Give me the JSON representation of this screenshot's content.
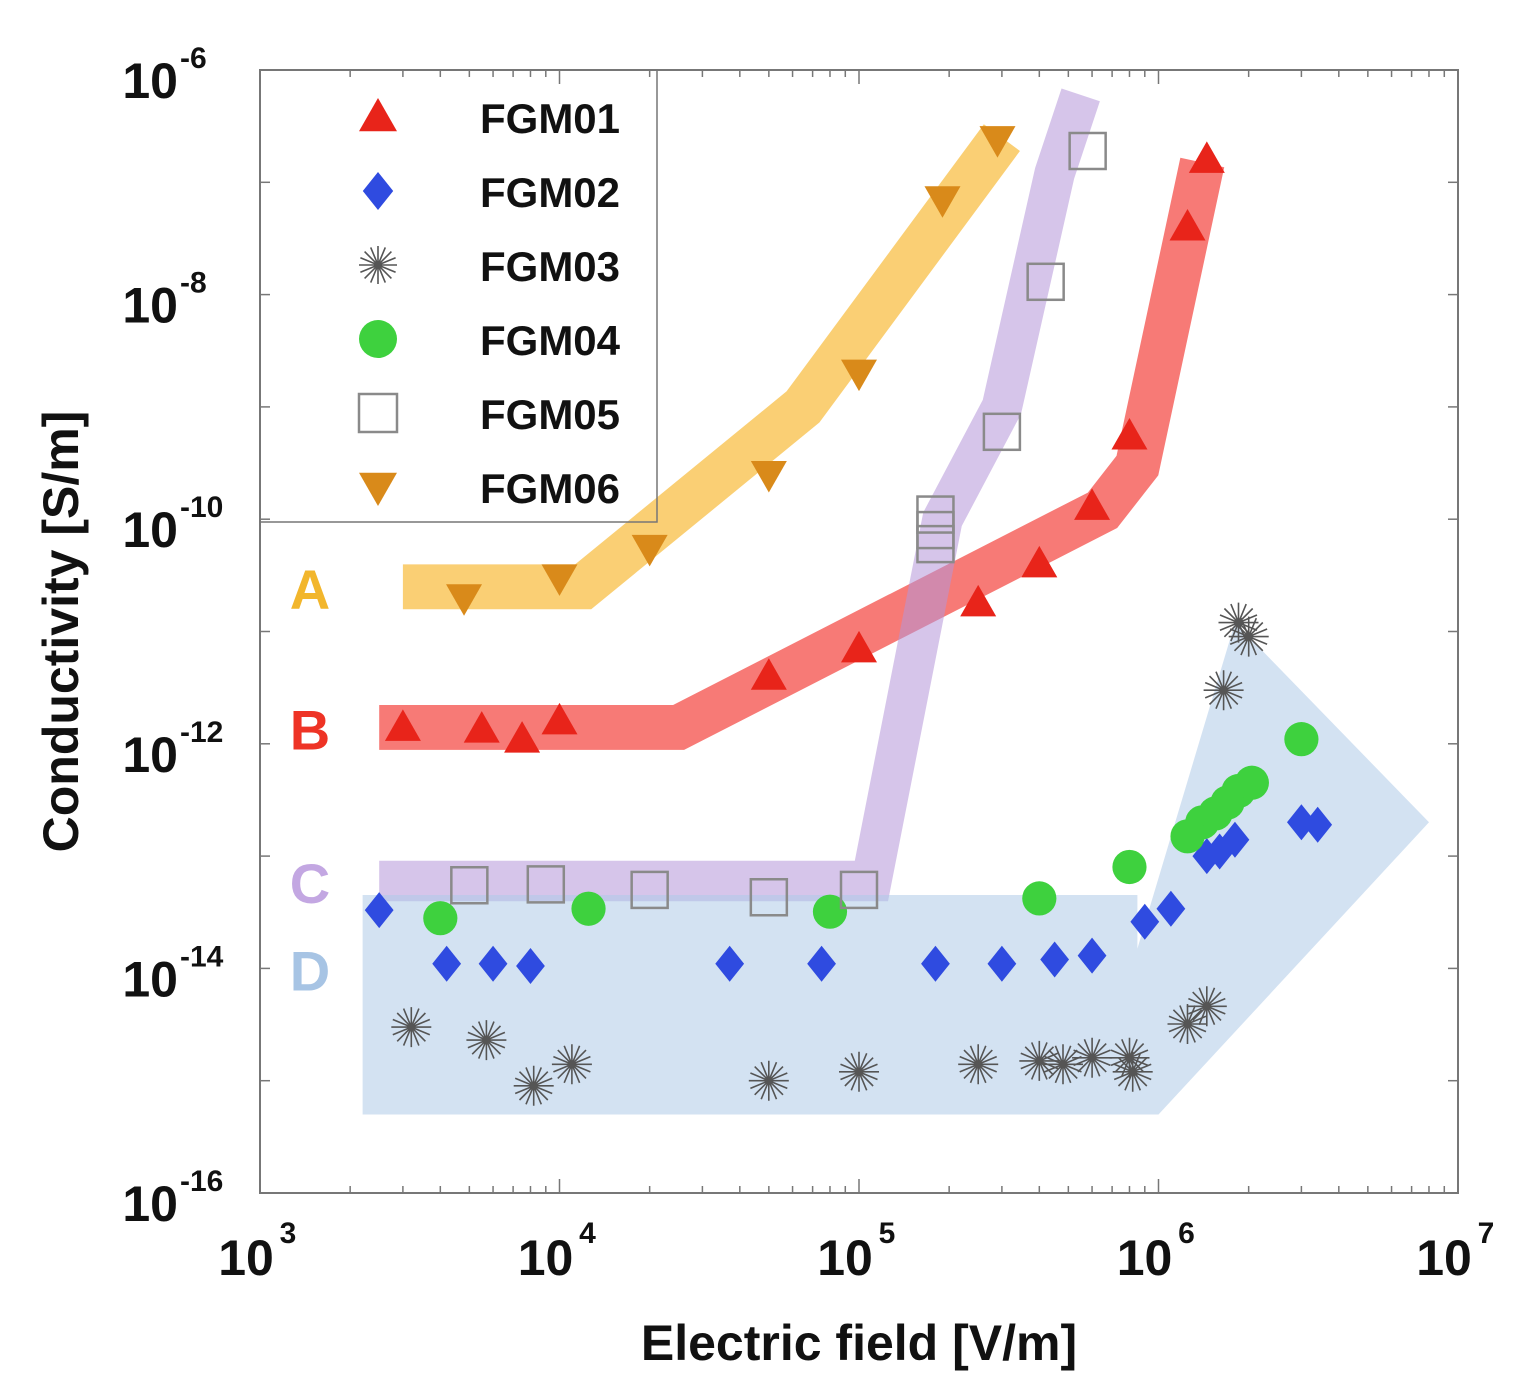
{
  "chart_data": {
    "type": "scatter",
    "title": "",
    "xlabel": "Electric field [V/m]",
    "ylabel": "Conductivity [S/m]",
    "x_scale": "log",
    "y_scale": "log",
    "xlim": [
      1000,
      10000000
    ],
    "ylim": [
      1e-16,
      1e-06
    ],
    "x_ticks": [
      {
        "base": "10",
        "exp": "3"
      },
      {
        "base": "10",
        "exp": "4"
      },
      {
        "base": "10",
        "exp": "5"
      },
      {
        "base": "10",
        "exp": "6"
      },
      {
        "base": "10",
        "exp": "7"
      }
    ],
    "y_ticks": [
      {
        "base": "10",
        "exp": "-16"
      },
      {
        "base": "10",
        "exp": "-14"
      },
      {
        "base": "10",
        "exp": "-12"
      },
      {
        "base": "10",
        "exp": "-10"
      },
      {
        "base": "10",
        "exp": "-8"
      },
      {
        "base": "10",
        "exp": "-6"
      }
    ],
    "series": [
      {
        "name": "FGM01",
        "marker": "triangle-up",
        "color": "#e8241a",
        "points": [
          [
            3000,
            1.4e-12
          ],
          [
            5500,
            1.35e-12
          ],
          [
            7500,
            1.1e-12
          ],
          [
            10000,
            1.6e-12
          ],
          [
            50000,
            4e-12
          ],
          [
            100000,
            7e-12
          ],
          [
            250000,
            1.8e-11
          ],
          [
            400000,
            4e-11
          ],
          [
            600000,
            1.3e-10
          ],
          [
            800000,
            5.5e-10
          ],
          [
            1250000,
            4e-08
          ],
          [
            1450000,
            1.6e-07
          ]
        ]
      },
      {
        "name": "FGM02",
        "marker": "diamond",
        "color": "#2f4be0",
        "points": [
          [
            2500,
            3.3e-14
          ],
          [
            4200,
            1.1e-14
          ],
          [
            6000,
            1.1e-14
          ],
          [
            8000,
            1.05e-14
          ],
          [
            37000,
            1.1e-14
          ],
          [
            75000,
            1.1e-14
          ],
          [
            180000,
            1.1e-14
          ],
          [
            300000,
            1.1e-14
          ],
          [
            450000,
            1.2e-14
          ],
          [
            600000,
            1.3e-14
          ],
          [
            900000,
            2.6e-14
          ],
          [
            1100000,
            3.4e-14
          ],
          [
            1450000,
            1e-13
          ],
          [
            1600000,
            1.1e-13
          ],
          [
            1800000,
            1.4e-13
          ],
          [
            3000000,
            2e-13
          ],
          [
            3400000,
            1.9e-13
          ]
        ]
      },
      {
        "name": "FGM03",
        "marker": "asterisk",
        "color": "#555555",
        "points": [
          [
            3200,
            3e-15
          ],
          [
            5700,
            2.3e-15
          ],
          [
            8200,
            9e-16
          ],
          [
            11000,
            1.4e-15
          ],
          [
            50000,
            1e-15
          ],
          [
            100000,
            1.2e-15
          ],
          [
            250000,
            1.4e-15
          ],
          [
            400000,
            1.5e-15
          ],
          [
            480000,
            1.4e-15
          ],
          [
            600000,
            1.6e-15
          ],
          [
            800000,
            1.6e-15
          ],
          [
            820000,
            1.2e-15
          ],
          [
            1250000,
            3.2e-15
          ],
          [
            1450000,
            4.6e-15
          ],
          [
            1650000,
            3e-12
          ],
          [
            1850000,
            1.2e-11
          ],
          [
            2000000,
            9e-12
          ]
        ]
      },
      {
        "name": "FGM04",
        "marker": "circle",
        "color": "#3ed13e",
        "points": [
          [
            4000,
            2.8e-14
          ],
          [
            12500,
            3.4e-14
          ],
          [
            80000,
            3.2e-14
          ],
          [
            400000,
            4.2e-14
          ],
          [
            800000,
            8e-14
          ],
          [
            1250000,
            1.5e-13
          ],
          [
            1400000,
            2e-13
          ],
          [
            1550000,
            2.4e-13
          ],
          [
            1700000,
            3e-13
          ],
          [
            1850000,
            3.8e-13
          ],
          [
            2050000,
            4.5e-13
          ],
          [
            3000000,
            1.1e-12
          ]
        ]
      },
      {
        "name": "FGM05",
        "marker": "square-open",
        "color": "#8a8a8a",
        "points": [
          [
            5000,
            5.5e-14
          ],
          [
            9000,
            5.6e-14
          ],
          [
            20000,
            5e-14
          ],
          [
            50000,
            4.3e-14
          ],
          [
            100000,
            5e-14
          ],
          [
            180000,
            6e-11
          ],
          [
            180000,
            8e-11
          ],
          [
            180000,
            1.1e-10
          ],
          [
            300000,
            6e-10
          ],
          [
            420000,
            1.3e-08
          ],
          [
            580000,
            1.9e-07
          ]
        ]
      },
      {
        "name": "FGM06",
        "marker": "triangle-down",
        "color": "#d98a1a",
        "points": [
          [
            4800,
            2e-11
          ],
          [
            10000,
            3e-11
          ],
          [
            20000,
            5.5e-11
          ],
          [
            50000,
            2.5e-10
          ],
          [
            100000,
            2e-09
          ],
          [
            190000,
            7e-08
          ],
          [
            290000,
            2.4e-07
          ]
        ]
      }
    ],
    "regions": [
      {
        "label": "A",
        "color": "#f7b52a",
        "label_color": "#f2b62c",
        "opacity": 0.65,
        "path": [
          [
            3000,
            2.5e-11
          ],
          [
            12000,
            2.5e-11
          ],
          [
            65000,
            1e-09
          ],
          [
            300000,
            2.5e-07
          ]
        ],
        "half_width_decades": 0.2
      },
      {
        "label": "B",
        "color": "#f2332c",
        "label_color": "#ee3325",
        "opacity": 0.65,
        "path": [
          [
            2500,
            1.4e-12
          ],
          [
            25000,
            1.4e-12
          ],
          [
            650000,
            1.2e-10
          ],
          [
            850000,
            3e-10
          ],
          [
            1400000,
            1.5e-07
          ]
        ],
        "half_width_decades": 0.2
      },
      {
        "label": "C",
        "color": "#b596d8",
        "label_color": "#c3a7e2",
        "opacity": 0.55,
        "path": [
          [
            2500,
            6e-14
          ],
          [
            110000,
            6e-14
          ],
          [
            190000,
            1e-10
          ],
          [
            300000,
            1e-09
          ],
          [
            450000,
            1.2e-07
          ],
          [
            550000,
            6e-07
          ]
        ],
        "half_width_decades": 0.18
      },
      {
        "label": "D",
        "color": "#aecbe8",
        "label_color": "#a7c4e4",
        "opacity": 0.55,
        "shape": "polygon",
        "polygon": [
          [
            2200,
            4.5e-14
          ],
          [
            850000,
            4.5e-14
          ],
          [
            850000,
            1.5e-14
          ],
          [
            1800000,
            1.2e-11
          ],
          [
            8000000,
            2e-13
          ],
          [
            1000000,
            5e-16
          ],
          [
            2200,
            5e-16
          ]
        ]
      }
    ],
    "legend_position": "top-left"
  }
}
